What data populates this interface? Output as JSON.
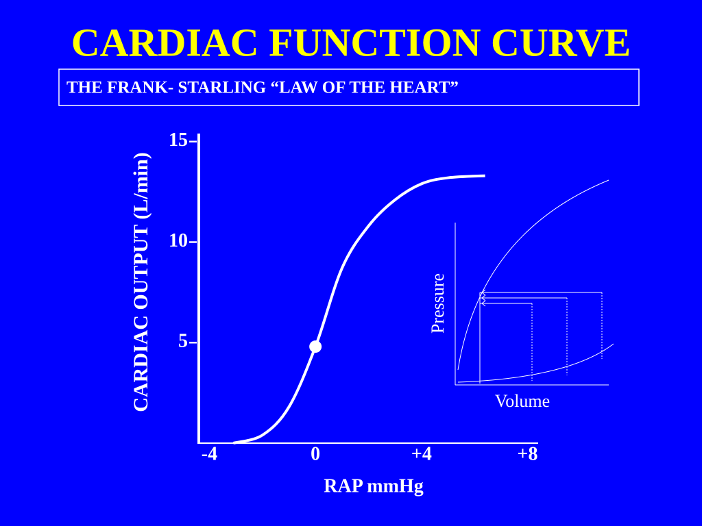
{
  "chart_data": {
    "type": "line",
    "title": "CARDIAC  FUNCTION  CURVE",
    "subtitle": "THE  FRANK- STARLING “LAW  OF  THE  HEART”",
    "y_label": "CARDIAC  OUTPUT  (L/min)",
    "x_label": "RAP mmHg",
    "x": [
      -3.1,
      -2,
      -1,
      0,
      1,
      2,
      3,
      4,
      5,
      6.4
    ],
    "values": [
      0,
      0.4,
      1.8,
      4.8,
      8.7,
      10.8,
      12.1,
      12.9,
      13.2,
      13.3
    ],
    "color": "#ffffff",
    "marker": {
      "x": 0,
      "y": 4.8
    },
    "xlim": [
      -4.4,
      8.4
    ],
    "xticks": [
      -4,
      0,
      {
        "value": 4,
        "label": "+4"
      },
      {
        "value": 8,
        "label": "+8"
      }
    ],
    "ylim": [
      0,
      15.4
    ],
    "yticks": [
      5,
      10,
      15
    ],
    "inset": {
      "y_label": "Pressure",
      "x_label": "Volume"
    }
  }
}
